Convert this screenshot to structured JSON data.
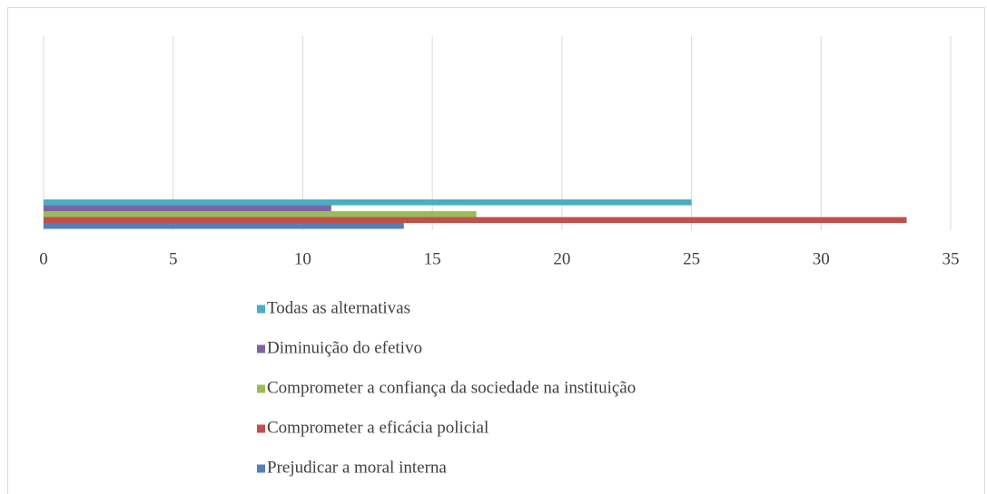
{
  "chart_data": {
    "type": "bar",
    "orientation": "horizontal",
    "categories": [
      null
    ],
    "series": [
      {
        "name": "Todas as alternativas",
        "color": "#4bacc6",
        "values": [
          25
        ]
      },
      {
        "name": "Diminuição do efetivo",
        "color": "#8064a2",
        "values": [
          11.1
        ]
      },
      {
        "name": "Comprometer a confiança da sociedade na instituição",
        "color": "#9bbb59",
        "values": [
          16.7
        ]
      },
      {
        "name": "Comprometer a eficácia policial",
        "color": "#c0504d",
        "values": [
          33.3
        ]
      },
      {
        "name": "Prejudicar a moral interna",
        "color": "#4f81bd",
        "values": [
          13.9
        ]
      }
    ],
    "xlim": [
      0,
      35
    ],
    "xticks": [
      0,
      5,
      10,
      15,
      20,
      25,
      30,
      35
    ],
    "grid": true,
    "legend": "bottom"
  }
}
